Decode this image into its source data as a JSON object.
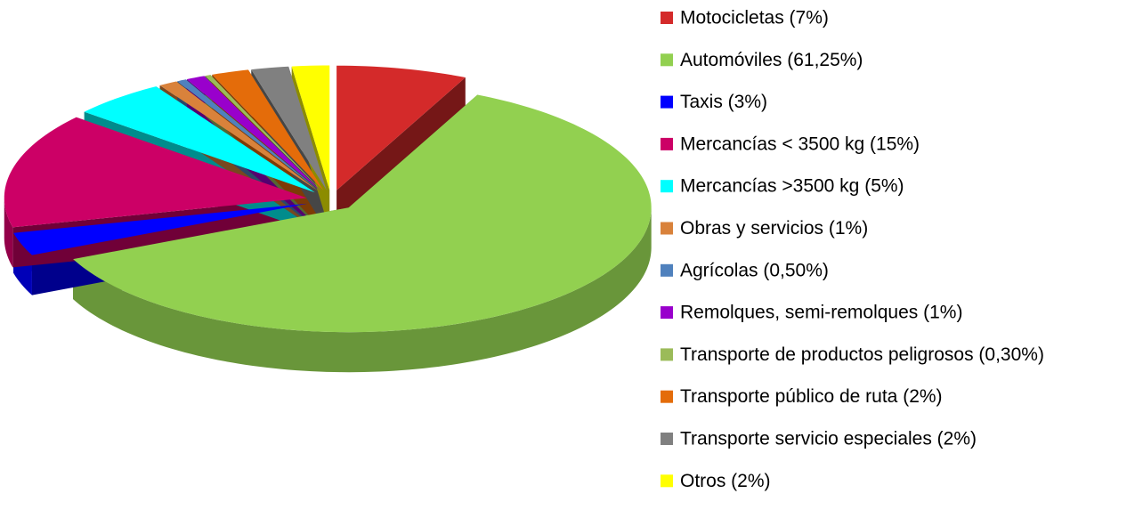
{
  "chart_data": {
    "type": "pie",
    "categories": [
      "Motocicletas (7%)",
      "Automóviles (61,25%)",
      "Taxis (3%)",
      "Mercancías < 3500 kg (15%)",
      "Mercancías  >3500 kg (5%)",
      "Obras y servicios (1%)",
      "Agrícolas (0,50%)",
      "Remolques, semi-remolques (1%)",
      "Transporte de productos peligrosos (0,30%)",
      "Transporte público de ruta (2%)",
      "Transporte servicio especiales (2%)",
      "Otros (2%)"
    ],
    "values": [
      7,
      61.25,
      3,
      15,
      5,
      1,
      0.5,
      1,
      0.3,
      2,
      2,
      2
    ],
    "colors": [
      "#d42a2a",
      "#92d050",
      "#0000ff",
      "#cc0066",
      "#00ffff",
      "#d9823b",
      "#4f81bd",
      "#9900cc",
      "#9bbb59",
      "#e46c0a",
      "#808080",
      "#ffff00"
    ],
    "legend": "right"
  }
}
